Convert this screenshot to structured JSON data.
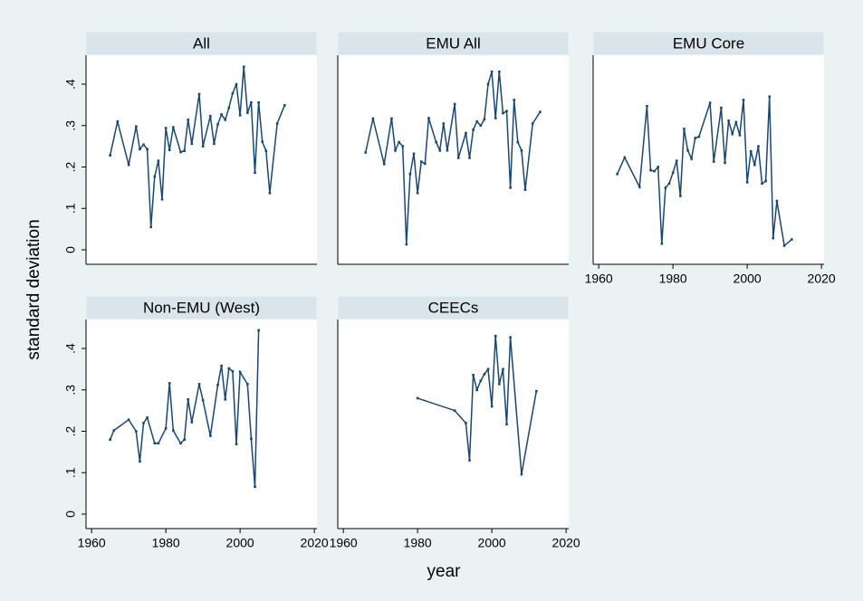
{
  "axis_labels": {
    "y": "standard deviation",
    "x": "year"
  },
  "chart_data": [
    {
      "type": "line",
      "title": "All",
      "color": "#1a476f",
      "x": [
        1965,
        1967,
        1970,
        1972,
        1973,
        1974,
        1975,
        1976,
        1977,
        1978,
        1979,
        1980,
        1981,
        1982,
        1984,
        1985,
        1986,
        1987,
        1989,
        1990,
        1992,
        1993,
        1994,
        1995,
        1996,
        1997,
        1998,
        1999,
        2000,
        2001,
        2002,
        2003,
        2004,
        2005,
        2006,
        2007,
        2008,
        2010,
        2012
      ],
      "values": [
        0.228,
        0.31,
        0.205,
        0.298,
        0.243,
        0.254,
        0.243,
        0.055,
        0.177,
        0.215,
        0.122,
        0.294,
        0.241,
        0.296,
        0.236,
        0.239,
        0.314,
        0.256,
        0.376,
        0.25,
        0.323,
        0.256,
        0.303,
        0.327,
        0.314,
        0.343,
        0.378,
        0.4,
        0.325,
        0.442,
        0.331,
        0.356,
        0.186,
        0.356,
        0.261,
        0.239,
        0.137,
        0.305,
        0.349
      ],
      "xlim": [
        1958.5,
        2020.7
      ],
      "ylim": [
        -0.035,
        0.47
      ],
      "yticks": [
        0,
        {
          "value": 0.1,
          "label": ".1"
        },
        {
          "value": 0.2,
          "label": ".2"
        },
        {
          "value": 0.3,
          "label": ".3"
        },
        {
          "value": 0.4,
          "label": ".4"
        }
      ]
    },
    {
      "type": "line",
      "title": "EMU All",
      "color": "#1a476f",
      "x": [
        1966,
        1968,
        1971,
        1973,
        1974,
        1975,
        1976,
        1977,
        1978,
        1979,
        1980,
        1981,
        1982,
        1983,
        1985,
        1986,
        1987,
        1988,
        1990,
        1991,
        1993,
        1994,
        1995,
        1996,
        1997,
        1998,
        1999,
        2000,
        2001,
        2002,
        2003,
        2004,
        2005,
        2006,
        2007,
        2008,
        2009,
        2011,
        2013
      ],
      "values": [
        0.235,
        0.317,
        0.207,
        0.317,
        0.24,
        0.26,
        0.25,
        0.013,
        0.183,
        0.232,
        0.137,
        0.213,
        0.208,
        0.318,
        0.26,
        0.24,
        0.305,
        0.24,
        0.352,
        0.222,
        0.282,
        0.222,
        0.29,
        0.31,
        0.3,
        0.315,
        0.4,
        0.43,
        0.318,
        0.43,
        0.33,
        0.335,
        0.15,
        0.362,
        0.26,
        0.24,
        0.145,
        0.305,
        0.333
      ],
      "xlim": [
        1958.5,
        2020.7
      ],
      "ylim": [
        -0.035,
        0.47
      ]
    },
    {
      "type": "line",
      "title": "EMU Core",
      "color": "#1a476f",
      "x": [
        1965,
        1967,
        1971,
        1973,
        1974,
        1975,
        1976,
        1977,
        1978,
        1979,
        1980,
        1981,
        1982,
        1983,
        1984,
        1985,
        1986,
        1987,
        1990,
        1991,
        1993,
        1994,
        1995,
        1996,
        1997,
        1998,
        1999,
        2000,
        2001,
        2002,
        2003,
        2004,
        2005,
        2006,
        2007,
        2008,
        2010,
        2012
      ],
      "values": [
        0.183,
        0.223,
        0.152,
        0.347,
        0.192,
        0.19,
        0.2,
        0.015,
        0.15,
        0.16,
        0.186,
        0.215,
        0.13,
        0.292,
        0.24,
        0.22,
        0.27,
        0.273,
        0.355,
        0.213,
        0.343,
        0.21,
        0.312,
        0.28,
        0.308,
        0.277,
        0.362,
        0.163,
        0.238,
        0.205,
        0.25,
        0.16,
        0.166,
        0.37,
        0.028,
        0.118,
        0.01,
        0.025
      ],
      "xlim": [
        1958.5,
        2020.7
      ],
      "ylim": [
        -0.035,
        0.47
      ],
      "xticks": [
        1960,
        1980,
        2000,
        2020
      ]
    },
    {
      "type": "line",
      "title": "Non-EMU (West)",
      "color": "#1a476f",
      "x": [
        1965,
        1966,
        1970,
        1972,
        1973,
        1974,
        1975,
        1977,
        1978,
        1980,
        1981,
        1982,
        1984,
        1985,
        1986,
        1987,
        1989,
        1990,
        1992,
        1994,
        1995,
        1996,
        1997,
        1998,
        1999,
        2000,
        2002,
        2003,
        2004,
        2005
      ],
      "values": [
        0.18,
        0.202,
        0.228,
        0.2,
        0.127,
        0.22,
        0.233,
        0.171,
        0.171,
        0.207,
        0.316,
        0.202,
        0.171,
        0.18,
        0.277,
        0.222,
        0.314,
        0.275,
        0.189,
        0.312,
        0.358,
        0.277,
        0.352,
        0.345,
        0.169,
        0.343,
        0.314,
        0.182,
        0.066,
        0.444
      ],
      "xlim": [
        1958.5,
        2020.7
      ],
      "ylim": [
        -0.035,
        0.47
      ],
      "xticks": [
        1960,
        1980,
        2000,
        2020
      ],
      "yticks": [
        0,
        {
          "value": 0.1,
          "label": ".1"
        },
        {
          "value": 0.2,
          "label": ".2"
        },
        {
          "value": 0.3,
          "label": ".3"
        },
        {
          "value": 0.4,
          "label": ".4"
        }
      ]
    },
    {
      "type": "line",
      "title": "CEECs",
      "color": "#1a476f",
      "x": [
        1980,
        1990,
        1993,
        1994,
        1995,
        1996,
        1997,
        1998,
        1999,
        2000,
        2001,
        2002,
        2003,
        2004,
        2005,
        2008,
        2012
      ],
      "values": [
        0.28,
        0.25,
        0.22,
        0.13,
        0.336,
        0.3,
        0.322,
        0.338,
        0.35,
        0.26,
        0.43,
        0.314,
        0.35,
        0.217,
        0.427,
        0.096,
        0.297
      ],
      "xlim": [
        1958.5,
        2020.7
      ],
      "ylim": [
        -0.035,
        0.47
      ],
      "xticks": [
        1960,
        1980,
        2000,
        2020
      ]
    }
  ]
}
